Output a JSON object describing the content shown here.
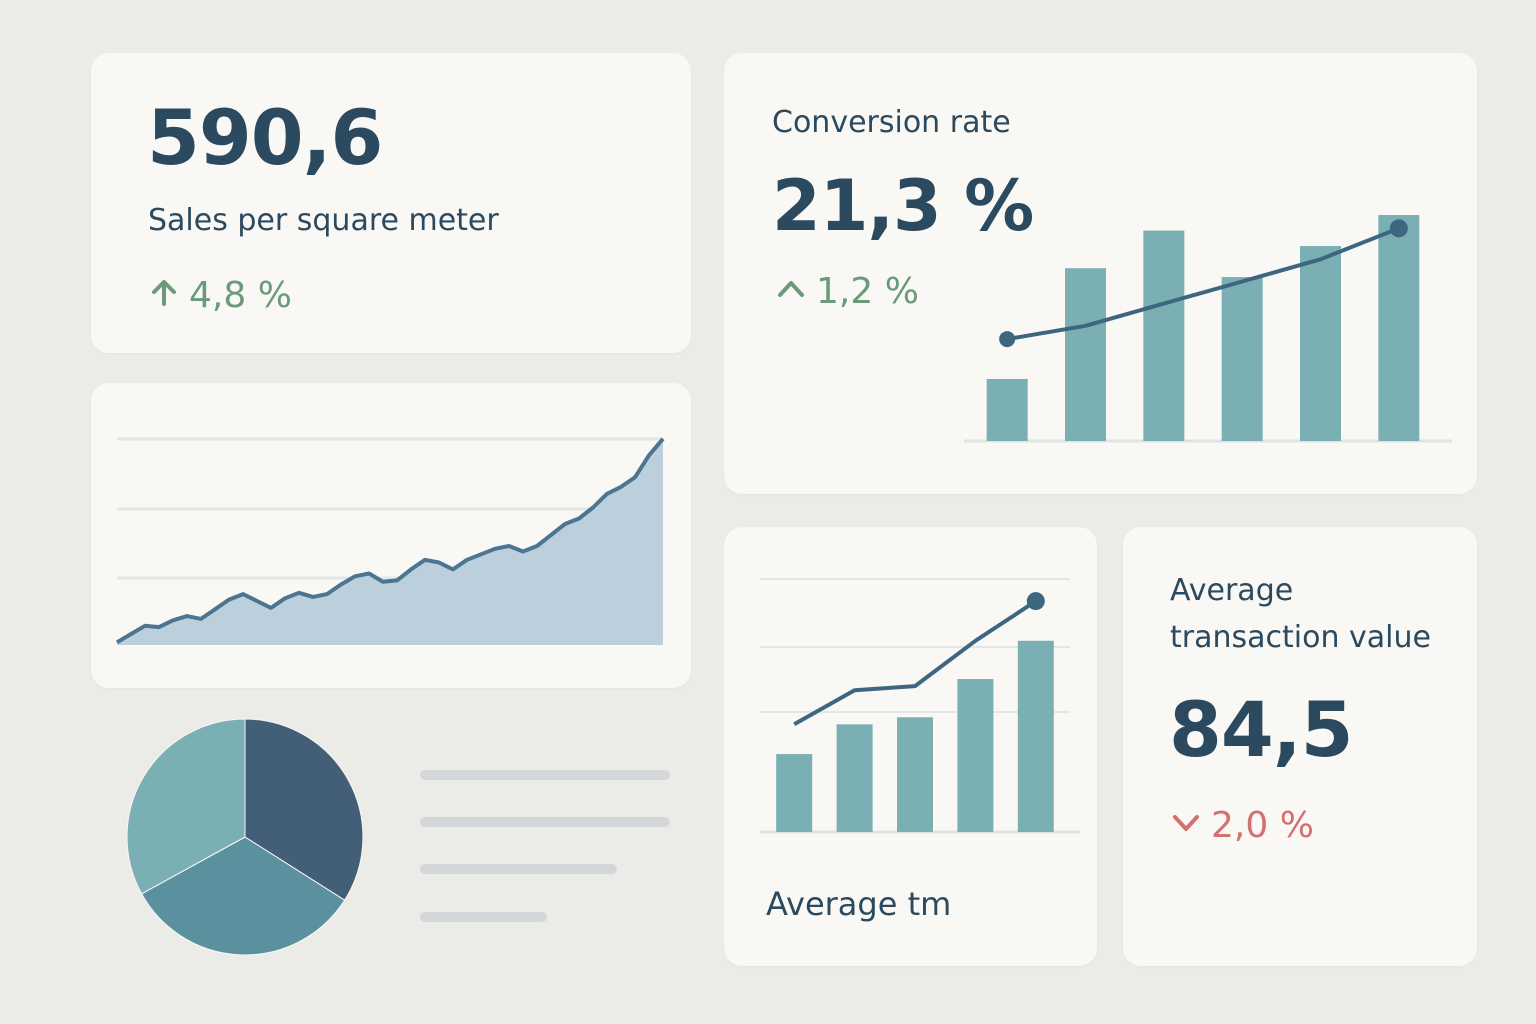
{
  "sales": {
    "value": "590,6",
    "label": "Sales per square meter",
    "change": "4,8 %",
    "direction": "up"
  },
  "conversion": {
    "label": "Conversion rate",
    "value": "21,3 %",
    "change": "1,2 %",
    "direction": "up"
  },
  "average_tm": {
    "label": "Average tm"
  },
  "atv": {
    "label_line1": "Average",
    "label_line2": "transaction value",
    "value": "84,5",
    "change": "2,0 %",
    "direction": "down"
  },
  "colors": {
    "card": "#faf8f4",
    "background": "#ebebe8",
    "text": "#2c4a5f",
    "positive": "#6b9a7a",
    "negative": "#d47070",
    "bar": "#7aafb4",
    "line": "#3d6680",
    "area_fill": "#bccfdc",
    "gridline": "#e3e6e6"
  },
  "chart_data": [
    {
      "type": "area",
      "name": "sales-trend",
      "x": [
        1,
        2,
        3,
        4,
        5,
        6,
        7,
        8,
        9,
        10,
        11,
        12,
        13,
        14,
        15,
        16,
        17,
        18,
        19,
        20,
        21,
        22,
        23,
        24,
        25,
        26,
        27,
        28,
        29,
        30,
        31,
        32,
        33,
        34,
        35,
        36,
        37,
        38,
        39,
        40
      ],
      "values": [
        2,
        8,
        14,
        13,
        18,
        21,
        19,
        26,
        33,
        37,
        32,
        27,
        34,
        38,
        35,
        37,
        44,
        50,
        52,
        46,
        47,
        55,
        62,
        60,
        55,
        62,
        66,
        70,
        72,
        68,
        72,
        80,
        88,
        92,
        100,
        110,
        115,
        122,
        138,
        150
      ],
      "ylim": [
        0,
        160
      ]
    },
    {
      "type": "bar",
      "name": "conversion-rate",
      "categories": [
        "1",
        "2",
        "3",
        "4",
        "5",
        "6"
      ],
      "values": [
        28,
        78,
        95,
        74,
        88,
        102
      ],
      "line": [
        46,
        52,
        62,
        72,
        82,
        96
      ],
      "ylim": [
        0,
        130
      ]
    },
    {
      "type": "bar",
      "name": "average-tm",
      "categories": [
        "1",
        "2",
        "3",
        "4",
        "5"
      ],
      "values": [
        55,
        76,
        81,
        108,
        135
      ],
      "line": [
        76,
        100,
        103,
        135,
        163
      ],
      "ylim": [
        0,
        180
      ]
    },
    {
      "type": "pie",
      "name": "share",
      "labels": [
        "",
        "",
        ""
      ],
      "values": [
        34,
        33,
        33
      ],
      "colors": [
        "#435f77",
        "#5b919e",
        "#7aafb4"
      ]
    }
  ]
}
